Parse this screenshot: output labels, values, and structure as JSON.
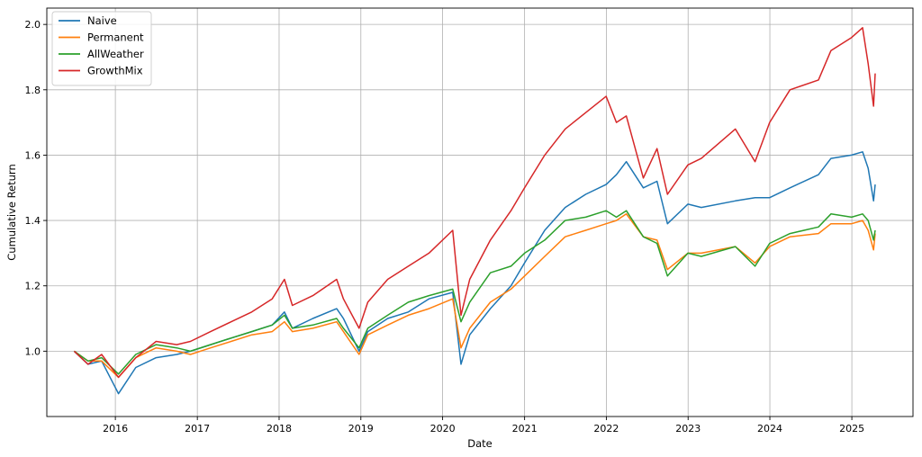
{
  "chart_data": {
    "type": "line",
    "title": "",
    "xlabel": "Date",
    "ylabel": "Cumulative Return",
    "xlim": [
      "2015-03-01",
      "2025-10-01"
    ],
    "ylim": [
      0.8,
      2.05
    ],
    "x_ticks": [
      "2016",
      "2017",
      "2018",
      "2019",
      "2020",
      "2021",
      "2022",
      "2023",
      "2024",
      "2025"
    ],
    "y_ticks": [
      "1.0",
      "1.2",
      "1.4",
      "1.6",
      "1.8",
      "2.0"
    ],
    "grid": true,
    "legend_position": "top-left",
    "series": [
      {
        "name": "Naive",
        "color": "#1f77b4",
        "points": [
          [
            "2015-07-01",
            1.0
          ],
          [
            "2015-09-01",
            0.96
          ],
          [
            "2015-11-01",
            0.97
          ],
          [
            "2016-01-15",
            0.87
          ],
          [
            "2016-04-01",
            0.95
          ],
          [
            "2016-07-01",
            0.98
          ],
          [
            "2016-10-01",
            0.99
          ],
          [
            "2016-12-01",
            1.0
          ],
          [
            "2017-03-01",
            1.02
          ],
          [
            "2017-06-01",
            1.04
          ],
          [
            "2017-09-01",
            1.06
          ],
          [
            "2017-12-01",
            1.08
          ],
          [
            "2018-01-25",
            1.12
          ],
          [
            "2018-03-01",
            1.07
          ],
          [
            "2018-06-01",
            1.1
          ],
          [
            "2018-09-15",
            1.13
          ],
          [
            "2018-10-15",
            1.1
          ],
          [
            "2018-12-24",
            1.0
          ],
          [
            "2019-02-01",
            1.06
          ],
          [
            "2019-05-01",
            1.1
          ],
          [
            "2019-08-01",
            1.12
          ],
          [
            "2019-11-01",
            1.16
          ],
          [
            "2020-02-15",
            1.18
          ],
          [
            "2020-03-23",
            0.96
          ],
          [
            "2020-05-01",
            1.05
          ],
          [
            "2020-08-01",
            1.13
          ],
          [
            "2020-11-01",
            1.2
          ],
          [
            "2021-01-01",
            1.27
          ],
          [
            "2021-04-01",
            1.37
          ],
          [
            "2021-07-01",
            1.44
          ],
          [
            "2021-10-01",
            1.48
          ],
          [
            "2021-12-31",
            1.51
          ],
          [
            "2022-02-15",
            1.54
          ],
          [
            "2022-03-31",
            1.58
          ],
          [
            "2022-06-15",
            1.5
          ],
          [
            "2022-08-15",
            1.52
          ],
          [
            "2022-10-01",
            1.39
          ],
          [
            "2022-12-31",
            1.45
          ],
          [
            "2023-03-01",
            1.44
          ],
          [
            "2023-07-31",
            1.46
          ],
          [
            "2023-10-27",
            1.47
          ],
          [
            "2023-12-31",
            1.47
          ],
          [
            "2024-03-31",
            1.5
          ],
          [
            "2024-08-05",
            1.54
          ],
          [
            "2024-09-30",
            1.59
          ],
          [
            "2024-12-31",
            1.6
          ],
          [
            "2025-02-18",
            1.61
          ],
          [
            "2025-03-15",
            1.56
          ],
          [
            "2025-04-08",
            1.46
          ],
          [
            "2025-04-15",
            1.51
          ]
        ]
      },
      {
        "name": "Permanent",
        "color": "#ff7f0e",
        "points": [
          [
            "2015-07-01",
            1.0
          ],
          [
            "2015-09-01",
            0.97
          ],
          [
            "2015-11-01",
            0.97
          ],
          [
            "2016-01-15",
            0.92
          ],
          [
            "2016-04-01",
            0.98
          ],
          [
            "2016-07-01",
            1.01
          ],
          [
            "2016-10-01",
            1.0
          ],
          [
            "2016-12-01",
            0.99
          ],
          [
            "2017-03-01",
            1.01
          ],
          [
            "2017-06-01",
            1.03
          ],
          [
            "2017-09-01",
            1.05
          ],
          [
            "2017-12-01",
            1.06
          ],
          [
            "2018-01-25",
            1.09
          ],
          [
            "2018-03-01",
            1.06
          ],
          [
            "2018-06-01",
            1.07
          ],
          [
            "2018-09-15",
            1.09
          ],
          [
            "2018-10-15",
            1.06
          ],
          [
            "2018-12-24",
            0.99
          ],
          [
            "2019-02-01",
            1.05
          ],
          [
            "2019-05-01",
            1.08
          ],
          [
            "2019-08-01",
            1.11
          ],
          [
            "2019-11-01",
            1.13
          ],
          [
            "2020-02-15",
            1.16
          ],
          [
            "2020-03-23",
            1.01
          ],
          [
            "2020-05-01",
            1.07
          ],
          [
            "2020-08-01",
            1.15
          ],
          [
            "2020-11-01",
            1.19
          ],
          [
            "2021-01-01",
            1.23
          ],
          [
            "2021-04-01",
            1.29
          ],
          [
            "2021-07-01",
            1.35
          ],
          [
            "2021-10-01",
            1.37
          ],
          [
            "2021-12-31",
            1.39
          ],
          [
            "2022-02-15",
            1.4
          ],
          [
            "2022-03-31",
            1.42
          ],
          [
            "2022-06-15",
            1.35
          ],
          [
            "2022-08-15",
            1.34
          ],
          [
            "2022-10-01",
            1.25
          ],
          [
            "2022-12-31",
            1.3
          ],
          [
            "2023-03-01",
            1.3
          ],
          [
            "2023-07-31",
            1.32
          ],
          [
            "2023-10-27",
            1.27
          ],
          [
            "2023-12-31",
            1.32
          ],
          [
            "2024-03-31",
            1.35
          ],
          [
            "2024-08-05",
            1.36
          ],
          [
            "2024-09-30",
            1.39
          ],
          [
            "2024-12-31",
            1.39
          ],
          [
            "2025-02-18",
            1.4
          ],
          [
            "2025-03-15",
            1.37
          ],
          [
            "2025-04-08",
            1.31
          ],
          [
            "2025-04-15",
            1.36
          ]
        ]
      },
      {
        "name": "AllWeather",
        "color": "#2ca02c",
        "points": [
          [
            "2015-07-01",
            1.0
          ],
          [
            "2015-09-01",
            0.97
          ],
          [
            "2015-11-01",
            0.98
          ],
          [
            "2016-01-15",
            0.93
          ],
          [
            "2016-04-01",
            0.99
          ],
          [
            "2016-07-01",
            1.02
          ],
          [
            "2016-10-01",
            1.01
          ],
          [
            "2016-12-01",
            1.0
          ],
          [
            "2017-03-01",
            1.02
          ],
          [
            "2017-06-01",
            1.04
          ],
          [
            "2017-09-01",
            1.06
          ],
          [
            "2017-12-01",
            1.08
          ],
          [
            "2018-01-25",
            1.11
          ],
          [
            "2018-03-01",
            1.07
          ],
          [
            "2018-06-01",
            1.08
          ],
          [
            "2018-09-15",
            1.1
          ],
          [
            "2018-10-15",
            1.07
          ],
          [
            "2018-12-24",
            1.01
          ],
          [
            "2019-02-01",
            1.07
          ],
          [
            "2019-05-01",
            1.11
          ],
          [
            "2019-08-01",
            1.15
          ],
          [
            "2019-11-01",
            1.17
          ],
          [
            "2020-02-15",
            1.19
          ],
          [
            "2020-03-23",
            1.09
          ],
          [
            "2020-05-01",
            1.15
          ],
          [
            "2020-08-01",
            1.24
          ],
          [
            "2020-11-01",
            1.26
          ],
          [
            "2021-01-01",
            1.3
          ],
          [
            "2021-04-01",
            1.34
          ],
          [
            "2021-07-01",
            1.4
          ],
          [
            "2021-10-01",
            1.41
          ],
          [
            "2021-12-31",
            1.43
          ],
          [
            "2022-02-15",
            1.41
          ],
          [
            "2022-03-31",
            1.43
          ],
          [
            "2022-06-15",
            1.35
          ],
          [
            "2022-08-15",
            1.33
          ],
          [
            "2022-10-01",
            1.23
          ],
          [
            "2022-12-31",
            1.3
          ],
          [
            "2023-03-01",
            1.29
          ],
          [
            "2023-07-31",
            1.32
          ],
          [
            "2023-10-27",
            1.26
          ],
          [
            "2023-12-31",
            1.33
          ],
          [
            "2024-03-31",
            1.36
          ],
          [
            "2024-08-05",
            1.38
          ],
          [
            "2024-09-30",
            1.42
          ],
          [
            "2024-12-31",
            1.41
          ],
          [
            "2025-02-18",
            1.42
          ],
          [
            "2025-03-15",
            1.4
          ],
          [
            "2025-04-08",
            1.34
          ],
          [
            "2025-04-15",
            1.37
          ]
        ]
      },
      {
        "name": "GrowthMix",
        "color": "#d62728",
        "points": [
          [
            "2015-07-01",
            1.0
          ],
          [
            "2015-09-01",
            0.96
          ],
          [
            "2015-11-01",
            0.99
          ],
          [
            "2016-01-15",
            0.92
          ],
          [
            "2016-04-01",
            0.98
          ],
          [
            "2016-07-01",
            1.03
          ],
          [
            "2016-10-01",
            1.02
          ],
          [
            "2016-12-01",
            1.03
          ],
          [
            "2017-03-01",
            1.06
          ],
          [
            "2017-06-01",
            1.09
          ],
          [
            "2017-09-01",
            1.12
          ],
          [
            "2017-12-01",
            1.16
          ],
          [
            "2018-01-25",
            1.22
          ],
          [
            "2018-03-01",
            1.14
          ],
          [
            "2018-06-01",
            1.17
          ],
          [
            "2018-09-15",
            1.22
          ],
          [
            "2018-10-15",
            1.16
          ],
          [
            "2018-12-24",
            1.07
          ],
          [
            "2019-02-01",
            1.15
          ],
          [
            "2019-05-01",
            1.22
          ],
          [
            "2019-08-01",
            1.26
          ],
          [
            "2019-11-01",
            1.3
          ],
          [
            "2020-02-15",
            1.37
          ],
          [
            "2020-03-23",
            1.11
          ],
          [
            "2020-05-01",
            1.22
          ],
          [
            "2020-08-01",
            1.34
          ],
          [
            "2020-11-01",
            1.43
          ],
          [
            "2021-01-01",
            1.5
          ],
          [
            "2021-04-01",
            1.6
          ],
          [
            "2021-07-01",
            1.68
          ],
          [
            "2021-10-01",
            1.73
          ],
          [
            "2021-12-31",
            1.78
          ],
          [
            "2022-02-15",
            1.7
          ],
          [
            "2022-03-31",
            1.72
          ],
          [
            "2022-06-15",
            1.53
          ],
          [
            "2022-08-15",
            1.62
          ],
          [
            "2022-10-01",
            1.48
          ],
          [
            "2022-12-31",
            1.57
          ],
          [
            "2023-03-01",
            1.59
          ],
          [
            "2023-07-31",
            1.68
          ],
          [
            "2023-10-27",
            1.58
          ],
          [
            "2023-12-31",
            1.7
          ],
          [
            "2024-03-31",
            1.8
          ],
          [
            "2024-08-05",
            1.83
          ],
          [
            "2024-09-30",
            1.92
          ],
          [
            "2024-12-31",
            1.96
          ],
          [
            "2025-02-18",
            1.99
          ],
          [
            "2025-03-15",
            1.88
          ],
          [
            "2025-04-08",
            1.75
          ],
          [
            "2025-04-15",
            1.85
          ]
        ]
      }
    ]
  }
}
